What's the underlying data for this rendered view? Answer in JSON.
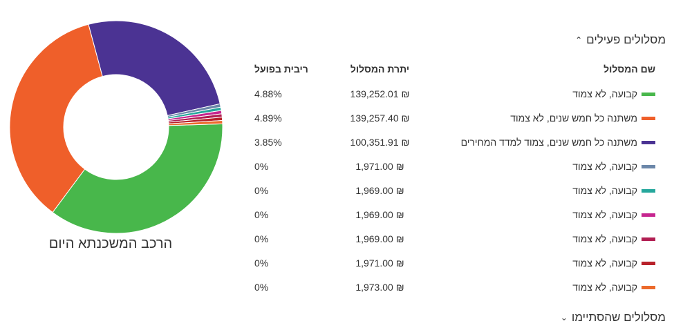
{
  "chart_data": {
    "type": "pie",
    "title": "הרכב המשכנתא היום",
    "categories": [
      "קבועה, לא צמוד",
      "משתנה כל חמש שנים, לא צמוד",
      "משתנה כל חמש שנים, צמוד למדד המחירים",
      "קבועה, לא צמוד",
      "קבועה, לא צמוד",
      "קבועה, לא צמוד",
      "קבועה, לא צמוד",
      "קבועה, לא צמוד",
      "קבועה, לא צמוד"
    ],
    "values": [
      139252.01,
      139257.4,
      100351.91,
      1971.0,
      1969.0,
      1969.0,
      1969.0,
      1971.0,
      1973.0
    ],
    "colors": [
      "#48b74b",
      "#ef5f2a",
      "#4b3393",
      "#6b87a9",
      "#25a79c",
      "#c6258f",
      "#b11e52",
      "#b8222b",
      "#ec6a2b"
    ]
  },
  "active_section": {
    "label": "מסלולים פעילים",
    "icon": "chevron-up-icon"
  },
  "ended_section": {
    "label": "מסלולים שהסתיימו",
    "icon": "chevron-down-icon"
  },
  "table": {
    "headers": {
      "name": "שם המסלול",
      "balance": "יתרת המסלול",
      "rate": "ריבית בפועל"
    },
    "rows": [
      {
        "name": "קבועה, לא צמוד",
        "balance": "₪ 139,252.01",
        "rate": "4.88%",
        "color": "#48b74b"
      },
      {
        "name": "משתנה כל חמש שנים, לא צמוד",
        "balance": "₪ 139,257.40",
        "rate": "4.89%",
        "color": "#ef5f2a"
      },
      {
        "name": "משתנה כל חמש שנים, צמוד למדד המחירים",
        "balance": "₪ 100,351.91",
        "rate": "3.85%",
        "color": "#4b3393"
      },
      {
        "name": "קבועה, לא צמוד",
        "balance": "₪ 1,971.00",
        "rate": "0%",
        "color": "#6b87a9"
      },
      {
        "name": "קבועה, לא צמוד",
        "balance": "₪ 1,969.00",
        "rate": "0%",
        "color": "#25a79c"
      },
      {
        "name": "קבועה, לא צמוד",
        "balance": "₪ 1,969.00",
        "rate": "0%",
        "color": "#c6258f"
      },
      {
        "name": "קבועה, לא צמוד",
        "balance": "₪ 1,969.00",
        "rate": "0%",
        "color": "#b11e52"
      },
      {
        "name": "קבועה, לא צמוד",
        "balance": "₪ 1,971.00",
        "rate": "0%",
        "color": "#b8222b"
      },
      {
        "name": "קבועה, לא צמוד",
        "balance": "₪ 1,973.00",
        "rate": "0%",
        "color": "#ec6a2b"
      }
    ]
  }
}
